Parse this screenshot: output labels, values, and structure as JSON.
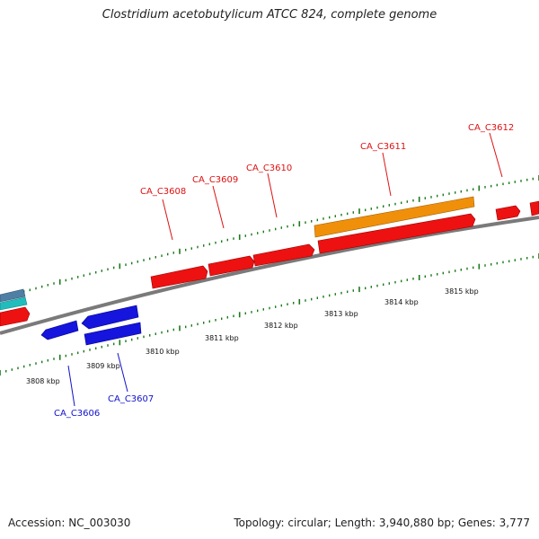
{
  "title": "Clostridium acetobutylicum ATCC 824, complete genome",
  "footer": {
    "accession": "Accession: NC_003030",
    "summary": "Topology: circular; Length: 3,940,880 bp; Genes: 3,777"
  },
  "colors": {
    "tick": "#1a7a1a",
    "backbone": "#808080",
    "gene_red": "#ee1111",
    "gene_orange": "#f0900a",
    "gene_blue": "#1515dd",
    "gene_cyan": "#22bcbc",
    "gene_steel": "#4f7fa4",
    "label_red": "#dd1111",
    "label_blue": "#1111cc"
  },
  "scale_labels": [
    "3808 kbp",
    "3809 kbp",
    "3810 kbp",
    "3811 kbp",
    "3812 kbp",
    "3813 kbp",
    "3814 kbp",
    "3815 kbp"
  ],
  "gene_labels": [
    {
      "text": "CA_C3606",
      "strand": "minus"
    },
    {
      "text": "CA_C3607",
      "strand": "minus"
    },
    {
      "text": "CA_C3608",
      "strand": "plus"
    },
    {
      "text": "CA_C3609",
      "strand": "plus"
    },
    {
      "text": "CA_C3610",
      "strand": "plus"
    },
    {
      "text": "CA_C3611",
      "strand": "plus"
    },
    {
      "text": "CA_C3612",
      "strand": "plus"
    }
  ]
}
